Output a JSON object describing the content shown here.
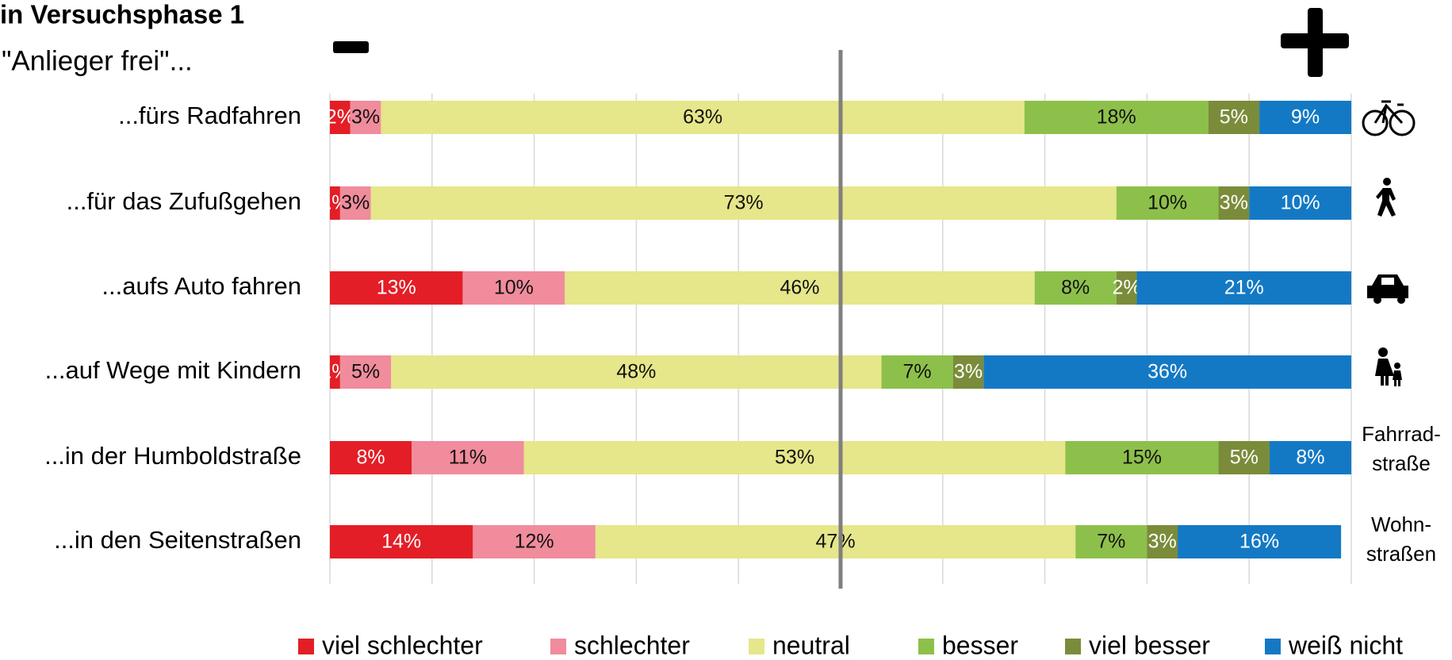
{
  "chart_data": {
    "type": "stacked_bar_horizontal_percent",
    "title": "in Versuchsphase 1",
    "subtitle": "\"Anlieger frei\"...",
    "categories": [
      "...fürs Radfahren",
      "...für das Zufußgehen",
      "...aufs Auto fahren",
      "...auf Wege mit Kindern",
      "...in der Humboldstraße",
      "...in den Seitenstraßen"
    ],
    "series": [
      {
        "name": "viel schlechter",
        "color": "#e31e26",
        "label_color": "#ffffff",
        "values": [
          2,
          1,
          13,
          1,
          8,
          14
        ],
        "value_labels": [
          "2%",
          "1%",
          "13%",
          "1%",
          "8%",
          "14%"
        ]
      },
      {
        "name": "schlechter",
        "color": "#f08c9c",
        "label_color": "#111111",
        "values": [
          3,
          3,
          10,
          5,
          11,
          12
        ],
        "value_labels": [
          "3%",
          "3%",
          "10%",
          "5%",
          "11%",
          "12%"
        ]
      },
      {
        "name": "neutral",
        "color": "#e6e68a",
        "label_color": "#111111",
        "values": [
          63,
          73,
          46,
          48,
          53,
          47
        ],
        "value_labels": [
          "63%",
          "73%",
          "46%",
          "48%",
          "53%",
          "47%"
        ]
      },
      {
        "name": "besser",
        "color": "#8dc04a",
        "label_color": "#111111",
        "values": [
          18,
          10,
          8,
          7,
          15,
          7
        ],
        "value_labels": [
          "18%",
          "10%",
          "8%",
          "7%",
          "15%",
          "7%"
        ]
      },
      {
        "name": "viel besser",
        "color": "#7a8c3a",
        "label_color": "#ffffff",
        "values": [
          5,
          3,
          2,
          3,
          5,
          3
        ],
        "value_labels": [
          "5%",
          "3%",
          "2%",
          "3%",
          "5%",
          "3%"
        ]
      },
      {
        "name": "weiß nicht",
        "color": "#1479c4",
        "label_color": "#ffffff",
        "values": [
          9,
          10,
          21,
          36,
          8,
          16
        ],
        "value_labels": [
          "9%",
          "10%",
          "21%",
          "36%",
          "8%",
          "16%"
        ]
      }
    ],
    "xlim": [
      0,
      100
    ],
    "xticks": [
      0,
      10,
      20,
      30,
      40,
      50,
      60,
      70,
      80,
      90,
      100
    ],
    "grid": true,
    "center_line": 50,
    "legend": "bottom",
    "annotations": [
      {
        "lines": [
          "Fahrrad-",
          "straße"
        ]
      },
      {
        "lines": [
          "Wohn-",
          "straßen"
        ]
      }
    ]
  }
}
